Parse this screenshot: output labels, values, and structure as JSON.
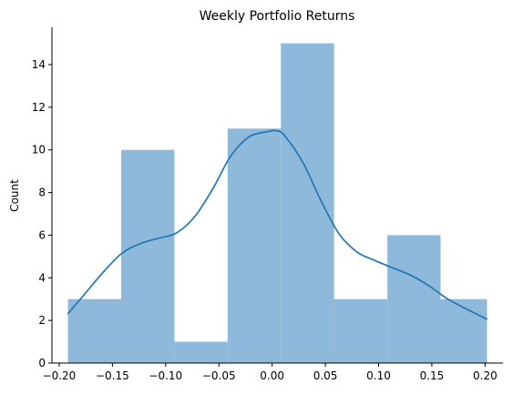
{
  "chart_data": {
    "type": "histogram",
    "title": "Weekly Portfolio Returns",
    "xlabel": "",
    "ylabel": "Count",
    "xlim": [
      -0.2068,
      0.2168
    ],
    "ylim": [
      0,
      15.75
    ],
    "bins": [
      {
        "x0": -0.1918,
        "x1": -0.1418,
        "count": 3
      },
      {
        "x0": -0.1418,
        "x1": -0.0918,
        "count": 10
      },
      {
        "x0": -0.0918,
        "x1": -0.0418,
        "count": 1
      },
      {
        "x0": -0.0418,
        "x1": 0.0082,
        "count": 11
      },
      {
        "x0": 0.0082,
        "x1": 0.0582,
        "count": 15
      },
      {
        "x0": 0.0582,
        "x1": 0.1082,
        "count": 3
      },
      {
        "x0": 0.1082,
        "x1": 0.1582,
        "count": 6
      },
      {
        "x0": 0.1582,
        "x1": 0.2018,
        "count": 3
      }
    ],
    "kde": {
      "x": [
        -0.192,
        -0.175,
        -0.158,
        -0.141,
        -0.124,
        -0.107,
        -0.09,
        -0.073,
        -0.056,
        -0.039,
        -0.022,
        -0.005,
        0.004,
        0.012,
        0.029,
        0.046,
        0.063,
        0.08,
        0.097,
        0.114,
        0.131,
        0.148,
        0.165,
        0.182,
        0.202
      ],
      "y": [
        2.3,
        3.3,
        4.3,
        5.15,
        5.6,
        5.85,
        6.1,
        6.85,
        8.15,
        9.7,
        10.6,
        10.85,
        10.9,
        10.65,
        9.4,
        7.6,
        6.05,
        5.2,
        4.8,
        4.45,
        4.1,
        3.6,
        3.0,
        2.55,
        2.05
      ]
    },
    "xticks": [
      -0.2,
      -0.15,
      -0.1,
      -0.05,
      0.0,
      0.05,
      0.1,
      0.15,
      0.2
    ],
    "xtick_labels": [
      "−0.20",
      "−0.15",
      "−0.10",
      "−0.05",
      "0.00",
      "0.05",
      "0.10",
      "0.15",
      "0.20"
    ],
    "yticks": [
      0,
      2,
      4,
      6,
      8,
      10,
      12,
      14
    ],
    "ytick_labels": [
      "0",
      "2",
      "4",
      "6",
      "8",
      "10",
      "12",
      "14"
    ],
    "grid": false,
    "bar_color": "#8fb9da",
    "line_color": "#1f77b4"
  }
}
